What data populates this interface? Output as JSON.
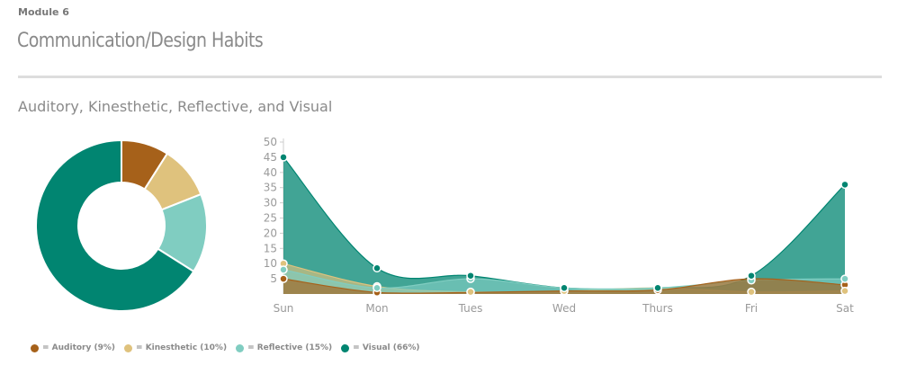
{
  "header": {
    "module": "Module 6",
    "title": "Communication/Design Habits",
    "subtitle": "Auditory, Kinesthetic, Reflective, and Visual"
  },
  "colors": {
    "auditory": "#a6611a",
    "kinesthetic": "#dfc27d",
    "reflective": "#80cdc1",
    "visual": "#018571"
  },
  "chart_data": [
    {
      "type": "pie",
      "categories": [
        "Auditory",
        "Kinesthetic",
        "Reflective",
        "Visual"
      ],
      "values": [
        9,
        10,
        15,
        66
      ],
      "donut": true
    },
    {
      "type": "area",
      "categories": [
        "Sun",
        "Mon",
        "Tues",
        "Wed",
        "Thurs",
        "Fri",
        "Sat"
      ],
      "ylim": [
        0,
        50
      ],
      "yticks": [
        5,
        10,
        15,
        20,
        25,
        30,
        35,
        40,
        45,
        50
      ],
      "series": [
        {
          "name": "Auditory",
          "values": [
            5,
            0.5,
            0.5,
            1,
            1.3,
            5,
            3
          ]
        },
        {
          "name": "Kinesthetic",
          "values": [
            10,
            2.5,
            0.7,
            1,
            2,
            0.7,
            1
          ]
        },
        {
          "name": "Reflective",
          "values": [
            8,
            2,
            5,
            2,
            2,
            4.5,
            5
          ]
        },
        {
          "name": "Visual",
          "values": [
            45,
            8.5,
            6,
            2,
            2,
            6,
            36
          ]
        }
      ]
    }
  ],
  "legend": [
    {
      "label": "= Auditory (9%)",
      "color": "#a6611a"
    },
    {
      "label": "= Kinesthetic (10%)",
      "color": "#dfc27d"
    },
    {
      "label": "= Reflective (15%)",
      "color": "#80cdc1"
    },
    {
      "label": "= Visual (66%)",
      "color": "#018571"
    }
  ]
}
